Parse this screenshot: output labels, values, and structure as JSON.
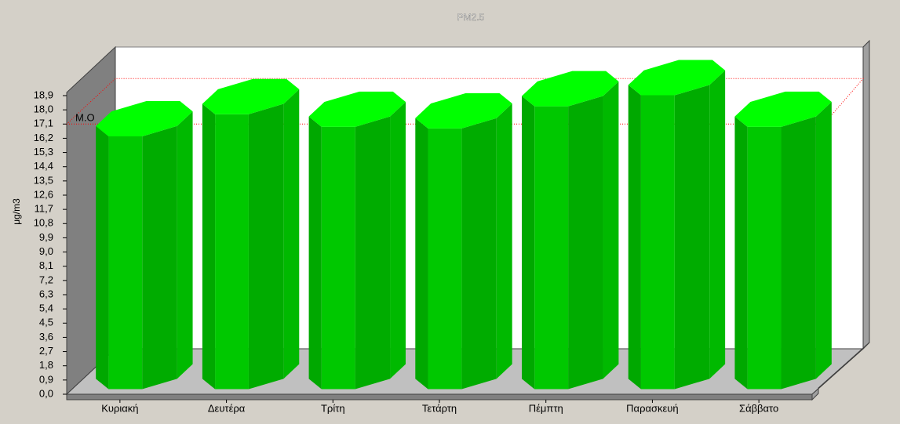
{
  "chart_data": {
    "type": "bar3d",
    "title": "PM2.5",
    "y_label": "μg/m3",
    "categories": [
      "Κυριακή",
      "Δευτέρα",
      "Τρίτη",
      "Τετάρτη",
      "Πέμπτη",
      "Παρασκευή",
      "Σάββατο"
    ],
    "values": [
      16.0,
      17.4,
      16.6,
      16.5,
      17.9,
      18.6,
      16.6
    ],
    "color": "#00ff00",
    "ylim": [
      0,
      18.9
    ],
    "yticks": [
      {
        "value": 0,
        "label": "0,0"
      },
      {
        "value": 0.9,
        "label": "0,9"
      },
      {
        "value": 1.8,
        "label": "1,8"
      },
      {
        "value": 2.7,
        "label": "2,7"
      },
      {
        "value": 3.6,
        "label": "3,6"
      },
      {
        "value": 4.5,
        "label": "4,5"
      },
      {
        "value": 5.4,
        "label": "5,4"
      },
      {
        "value": 6.3,
        "label": "6,3"
      },
      {
        "value": 7.2,
        "label": "7,2"
      },
      {
        "value": 8.1,
        "label": "8,1"
      },
      {
        "value": 9,
        "label": "9,0"
      },
      {
        "value": 9.9,
        "label": "9,9"
      },
      {
        "value": 10.8,
        "label": "10,8"
      },
      {
        "value": 11.7,
        "label": "11,7"
      },
      {
        "value": 12.6,
        "label": "12,6"
      },
      {
        "value": 13.5,
        "label": "13,5"
      },
      {
        "value": 14.4,
        "label": "14,4"
      },
      {
        "value": 15.3,
        "label": "15,3"
      },
      {
        "value": 16.2,
        "label": "16,2"
      },
      {
        "value": 17.1,
        "label": "17,1"
      },
      {
        "value": 18,
        "label": "18,0"
      },
      {
        "value": 18.9,
        "label": "18,9"
      }
    ],
    "mean_line": {
      "label": "M.O",
      "value": 17.1,
      "color": "#ff0000"
    }
  }
}
